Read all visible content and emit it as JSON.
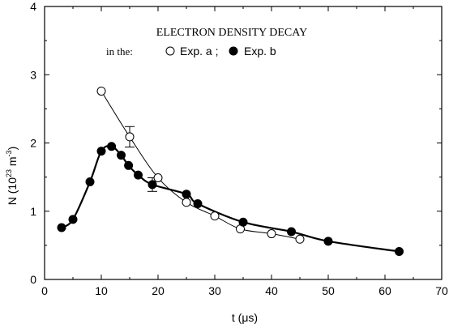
{
  "chart_data": {
    "type": "scatter",
    "title": "ELECTRON DENSITY DECAY",
    "legend": {
      "prefix": "in the:",
      "entries": [
        {
          "label": "Exp. a ;",
          "marker": "open-circle"
        },
        {
          "label": "Exp. b",
          "marker": "filled-circle"
        }
      ],
      "placement": "top-center"
    },
    "xlabel": {
      "pre": "t (",
      "mu": "μ",
      "post": "s)"
    },
    "ylabel": {
      "pre": "N (10",
      "sup1": "23",
      "mid": " m",
      "sup2": "-3",
      "post": ")"
    },
    "xlim": [
      0,
      70
    ],
    "ylim": [
      0,
      4
    ],
    "xticks": [
      0,
      10,
      20,
      30,
      40,
      50,
      60,
      70
    ],
    "yticks": [
      0,
      1,
      2,
      3,
      4
    ],
    "grid": false,
    "series": [
      {
        "name": "Exp. a",
        "marker": "open-circle",
        "line": "thin",
        "x": [
          10,
          15,
          20,
          25,
          30,
          34.5,
          40,
          45
        ],
        "y": [
          2.76,
          2.09,
          1.49,
          1.13,
          0.93,
          0.74,
          0.67,
          0.59
        ],
        "error_bars": [
          {
            "x": 15,
            "y": 2.09,
            "err": 0.15
          }
        ]
      },
      {
        "name": "Exp. b",
        "marker": "filled-circle",
        "line": "thick",
        "x": [
          3,
          5,
          8,
          10,
          11.8,
          13.5,
          14.8,
          16.5,
          19,
          25,
          27,
          35,
          43.5,
          50,
          62.5
        ],
        "y": [
          0.76,
          0.88,
          1.43,
          1.88,
          1.95,
          1.82,
          1.67,
          1.53,
          1.39,
          1.25,
          1.11,
          0.84,
          0.7,
          0.56,
          0.41
        ],
        "error_bars": [
          {
            "x": 19,
            "y": 1.39,
            "err": 0.1
          }
        ]
      }
    ]
  }
}
